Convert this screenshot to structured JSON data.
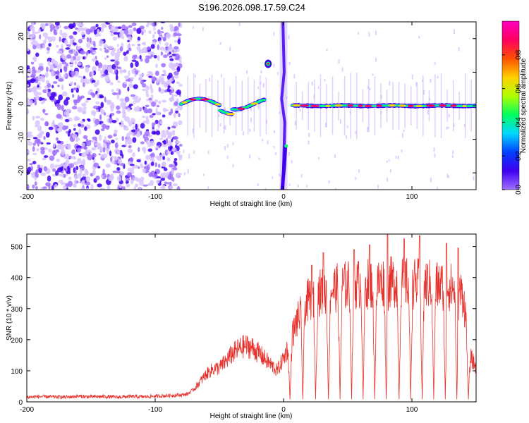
{
  "title": "S196.2026.098.17.59.C24",
  "chart_data": [
    {
      "type": "heatmap",
      "xlabel": "Height of straight line (km)",
      "ylabel": "Frequency (Hz)",
      "xlim": [
        -200,
        150
      ],
      "ylim": [
        -25,
        25
      ],
      "xticks": [
        -200,
        -100,
        0,
        100
      ],
      "yticks": [
        -20,
        -10,
        0,
        10,
        20
      ],
      "colorbar": {
        "label": "Normalized spectral amplitude",
        "range": [
          0,
          1
        ],
        "ticks": [
          0.0,
          0.2,
          0.4,
          0.6,
          0.8
        ],
        "colors": [
          "#ffffff",
          "#a070ff",
          "#4000f0",
          "#0040ff",
          "#00d8ff",
          "#00ff60",
          "#b0ff00",
          "#ffd000",
          "#ff5000",
          "#ff0060",
          "#ff00c0"
        ]
      },
      "features": [
        {
          "name": "noise",
          "x_range": [
            -200,
            -80
          ],
          "freq_range": [
            -25,
            25
          ],
          "amplitude": 0.15
        },
        {
          "name": "early echo",
          "x_range": [
            -80,
            -15
          ],
          "freq": 0.5,
          "amplitude": 0.7
        },
        {
          "name": "upper burst",
          "x": -12,
          "freq": 12.5,
          "amplitude": 0.8
        },
        {
          "name": "lower burst",
          "x": 2,
          "freq": -12,
          "amplitude": 0.5
        },
        {
          "name": "zero-height stripe",
          "x": 0,
          "freq_range": [
            -25,
            25
          ],
          "amplitude": 0.3
        },
        {
          "name": "main echo",
          "x_range": [
            7,
            150
          ],
          "freq": 0,
          "amplitude": 0.9
        }
      ]
    },
    {
      "type": "line",
      "xlabel": "Height of straight line (km)",
      "ylabel": "SNR (10 * v/v)",
      "xlim": [
        -200,
        150
      ],
      "ylim": [
        0,
        540
      ],
      "xticks": [
        -200,
        -100,
        0,
        100
      ],
      "yticks": [
        0,
        100,
        200,
        300,
        400,
        500
      ],
      "series": [
        {
          "name": "SNR",
          "color": "#e8302a",
          "x": [
            -200,
            -190,
            -180,
            -170,
            -160,
            -150,
            -140,
            -130,
            -120,
            -110,
            -100,
            -90,
            -80,
            -75,
            -70,
            -65,
            -60,
            -55,
            -50,
            -45,
            -40,
            -35,
            -30,
            -25,
            -20,
            -15,
            -10,
            -5,
            0,
            5,
            10,
            15,
            20,
            25,
            30,
            35,
            40,
            50,
            60,
            70,
            80,
            90,
            100,
            110,
            120,
            130,
            140,
            145,
            150
          ],
          "values": [
            15,
            17,
            16,
            15,
            18,
            16,
            17,
            15,
            17,
            16,
            18,
            20,
            22,
            25,
            40,
            65,
            90,
            105,
            110,
            130,
            155,
            170,
            180,
            175,
            160,
            140,
            120,
            100,
            140,
            190,
            255,
            300,
            330,
            345,
            355,
            360,
            365,
            375,
            380,
            380,
            385,
            385,
            380,
            380,
            375,
            370,
            345,
            150,
            110
          ],
          "dip_centers_km": [
            5,
            15,
            25,
            35,
            44,
            53,
            62,
            71,
            80,
            90,
            99,
            108,
            117,
            126,
            135,
            144
          ],
          "spikes": [
            {
              "x": 22,
              "value": 440
            },
            {
              "x": 31,
              "value": 480
            },
            {
              "x": 55,
              "value": 490
            },
            {
              "x": 67,
              "value": 505
            },
            {
              "x": 81,
              "value": 540
            },
            {
              "x": 94,
              "value": 525
            },
            {
              "x": 106,
              "value": 535
            },
            {
              "x": 127,
              "value": 510
            },
            {
              "x": 136,
              "value": 495
            }
          ]
        }
      ]
    }
  ]
}
